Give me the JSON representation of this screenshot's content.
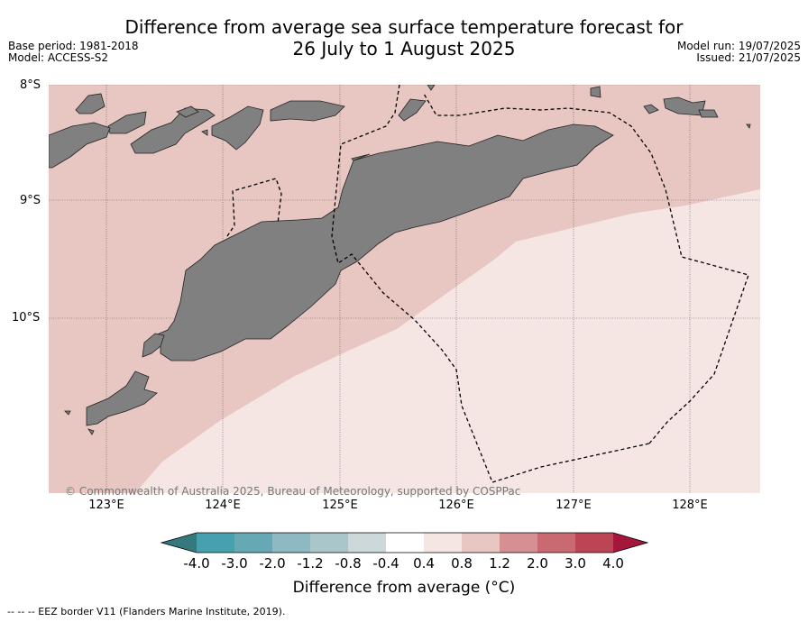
{
  "title": {
    "line1": "Difference from average sea surface temperature forecast for",
    "line2": "26 July to 1 August 2025"
  },
  "meta_left": {
    "base_period": "Base period: 1981-2018",
    "model": "Model: ACCESS-S2"
  },
  "meta_right": {
    "model_run": "Model run: 19/07/2025",
    "issued": "Issued: 21/07/2025"
  },
  "map": {
    "lat_labels": [
      "8°S",
      "9°S",
      "10°S"
    ],
    "lon_labels": [
      "123°E",
      "124°E",
      "125°E",
      "126°E",
      "127°E",
      "128°E"
    ],
    "land_color": "#808080",
    "anomaly_zone_color": "#e8c6c2",
    "near_average_color": "#f5e6e4",
    "credit": "© Commonwealth of Australia 2025, Bureau of Meteorology, supported by COSPPac"
  },
  "colorbar": {
    "ticks": [
      "-4.0",
      "-3.0",
      "-2.0",
      "-1.2",
      "-0.8",
      "-0.4",
      "0.4",
      "0.8",
      "1.2",
      "2.0",
      "3.0",
      "4.0"
    ],
    "colors": [
      "#46a0ad",
      "#66a8b4",
      "#8cb9c2",
      "#a9c7cb",
      "#ccd8d9",
      "#ffffff",
      "#f5e6e4",
      "#e8c6c2",
      "#d68f92",
      "#c96a72",
      "#bc4555"
    ],
    "under_color": "#35797f",
    "over_color": "#a5173a",
    "label": "Difference from average (°C)"
  },
  "legend": {
    "eez_note": "-- --  -- EEZ border V11 (Flanders Marine Institute, 2019)."
  }
}
